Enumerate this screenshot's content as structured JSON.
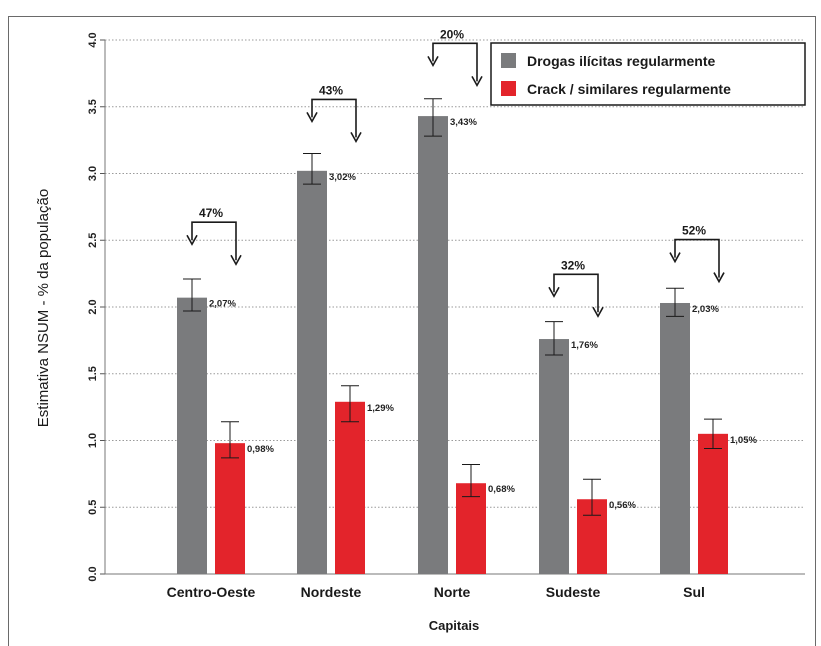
{
  "chart_data": {
    "type": "bar",
    "title": "",
    "xlabel": "Capitais",
    "ylabel": "Estimativa NSUM - % da população",
    "ylim": [
      0,
      4
    ],
    "yticks": [
      "0.0",
      "0.5",
      "1.0",
      "1.5",
      "2.0",
      "2.5",
      "3.0",
      "3.5",
      "4.0"
    ],
    "grid": "horizontal dotted",
    "legend_position": "top-right",
    "categories": [
      "Centro-Oeste",
      "Nordeste",
      "Norte",
      "Sudeste",
      "Sul"
    ],
    "series": [
      {
        "name": "Drogas ilícitas regularmente",
        "color": "#7a7b7d",
        "values": [
          2.07,
          3.02,
          3.43,
          1.76,
          2.03
        ],
        "labels": [
          "2,07%",
          "3,02%",
          "3,43%",
          "1,76%",
          "2,03%"
        ],
        "error_low": [
          1.97,
          2.92,
          3.28,
          1.64,
          1.93
        ],
        "error_high": [
          2.21,
          3.15,
          3.56,
          1.89,
          2.14
        ]
      },
      {
        "name": "Crack / similares regularmente",
        "color": "#e3242b",
        "values": [
          0.98,
          1.29,
          0.68,
          0.56,
          1.05
        ],
        "labels": [
          "0,98%",
          "1,29%",
          "0,68%",
          "0,56%",
          "1,05%"
        ],
        "error_low": [
          0.87,
          1.14,
          0.58,
          0.44,
          0.94
        ],
        "error_high": [
          1.14,
          1.41,
          0.82,
          0.71,
          1.16
        ]
      }
    ],
    "annotations": {
      "percent_labels": [
        "47%",
        "43%",
        "20%",
        "32%",
        "52%"
      ],
      "percent_label_y": [
        2.68,
        3.6,
        4.02,
        2.29,
        2.55
      ]
    }
  }
}
